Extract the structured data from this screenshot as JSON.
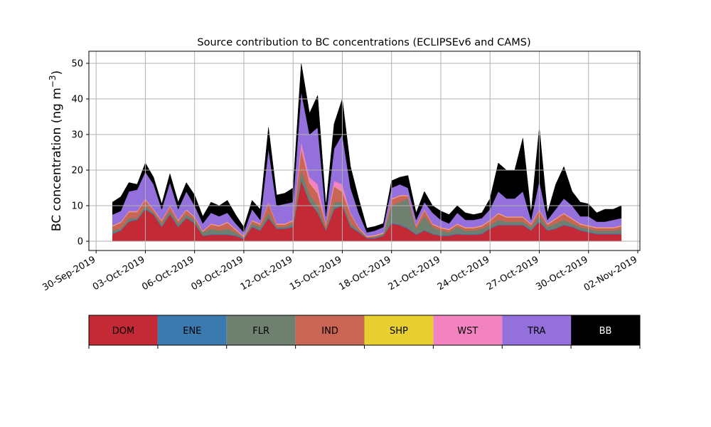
{
  "chart_data": {
    "type": "area",
    "stacked": true,
    "title": "Source contribution to BC concentrations (ECLIPSEv6 and CAMS)",
    "ylabel": "BC concentration (ng m$^{-3}$)",
    "ylabel_display": "BC concentration (ng m",
    "ylabel_sup": "−3",
    "ylabel_close": ")",
    "xlabel": "",
    "x_unit": "days since 30-Sep-2019",
    "xlim": [
      -0.44,
      33.13
    ],
    "ylim": [
      -2.6,
      53.4
    ],
    "grid": true,
    "yticks": [
      0,
      10,
      20,
      30,
      40,
      50
    ],
    "xticks": [
      0,
      3,
      6,
      9,
      12,
      15,
      18,
      21,
      24,
      27,
      30,
      33
    ],
    "xtick_labels": [
      "30-Sep-2019",
      "03-Oct-2019",
      "06-Oct-2019",
      "09-Oct-2019",
      "12-Oct-2019",
      "15-Oct-2019",
      "18-Oct-2019",
      "21-Oct-2019",
      "24-Oct-2019",
      "27-Oct-2019",
      "30-Oct-2019",
      "02-Nov-2019"
    ],
    "x": [
      1.0,
      1.5,
      2.0,
      2.5,
      3.0,
      3.5,
      4.0,
      4.5,
      5.0,
      5.5,
      6.0,
      6.5,
      7.0,
      7.5,
      8.0,
      8.5,
      9.0,
      9.5,
      10.0,
      10.5,
      11.0,
      11.5,
      12.0,
      12.5,
      13.0,
      13.5,
      14.0,
      14.5,
      15.0,
      15.5,
      16.0,
      16.5,
      17.0,
      17.5,
      18.0,
      18.5,
      19.0,
      19.5,
      20.0,
      20.5,
      21.0,
      21.5,
      22.0,
      22.5,
      23.0,
      23.5,
      24.0,
      24.5,
      25.0,
      25.5,
      26.0,
      26.5,
      27.0,
      27.5,
      28.0,
      28.5,
      29.0,
      29.5,
      30.0,
      30.5,
      31.0,
      31.5,
      32.0
    ],
    "series": [
      {
        "name": "DOM",
        "color": "#c42a35",
        "values": [
          2,
          3,
          5.5,
          6,
          9,
          7.5,
          4,
          7.5,
          4,
          6.5,
          5,
          1.5,
          1.8,
          1.8,
          1.8,
          1.5,
          0.6,
          4,
          3,
          6.5,
          3.5,
          3.5,
          4,
          17,
          11,
          8,
          3,
          9,
          10,
          4,
          2.5,
          0.8,
          0.8,
          1.5,
          5,
          4.5,
          3.5,
          1.8,
          3,
          2,
          1.5,
          1.5,
          2,
          1.8,
          1.8,
          2,
          3.5,
          4.5,
          4.5,
          4.5,
          4.5,
          3,
          5.5,
          3,
          3.5,
          4.5,
          4,
          3,
          2.5,
          2,
          2,
          2,
          2
        ]
      },
      {
        "name": "ENE",
        "color": "#3a7aaf",
        "values": [
          0.2,
          0.2,
          0.2,
          0.2,
          0.2,
          0.2,
          0.2,
          0.2,
          0.2,
          0.2,
          0.2,
          0.2,
          0.2,
          0.2,
          0.2,
          0.2,
          0.2,
          0.2,
          0.2,
          0.2,
          0.2,
          0.2,
          0.2,
          0.2,
          0.2,
          0.2,
          0.2,
          0.2,
          0.2,
          0.2,
          0.2,
          0.2,
          0.2,
          0.2,
          0.2,
          0.2,
          0.2,
          0.2,
          0.2,
          0.2,
          0.2,
          0.2,
          0.2,
          0.2,
          0.2,
          0.2,
          0.2,
          0.2,
          0.2,
          0.2,
          0.2,
          0.2,
          0.2,
          0.2,
          0.2,
          0.2,
          0.2,
          0.2,
          0.2,
          0.2,
          0.2,
          0.2,
          0.2
        ]
      },
      {
        "name": "FLR",
        "color": "#6f8070",
        "values": [
          0.8,
          0.3,
          0.8,
          0.3,
          0.8,
          0.3,
          0.8,
          0.8,
          0.8,
          0.8,
          0.8,
          0.8,
          1.5,
          1.0,
          1.5,
          0.8,
          0.2,
          0.8,
          0.8,
          1.3,
          0.3,
          0.3,
          0.8,
          2.8,
          1.8,
          1.8,
          0.3,
          1.8,
          0.8,
          0.8,
          0.3,
          0,
          0.2,
          0.3,
          4.8,
          6.3,
          8.3,
          1.5,
          3.8,
          1.8,
          1.3,
          0.8,
          1.8,
          1.0,
          1.0,
          1.3,
          0.8,
          1.3,
          0.8,
          0.8,
          0.8,
          0.8,
          1.3,
          0.8,
          1.3,
          1.3,
          0.8,
          0.8,
          0.8,
          0.8,
          0.8,
          0.8,
          1.1
        ]
      },
      {
        "name": "IND",
        "color": "#c96555",
        "values": [
          1.2,
          1.7,
          1.7,
          1.7,
          1.7,
          0.7,
          0.7,
          1.2,
          0.7,
          1.2,
          0.7,
          0.2,
          1.2,
          1.2,
          1.7,
          0.7,
          0.2,
          0.7,
          0.7,
          2.7,
          0.7,
          0.7,
          0.7,
          5.9,
          3.4,
          3.4,
          1.2,
          4.4,
          2.9,
          2.7,
          0.7,
          0.2,
          0.3,
          0.2,
          1.7,
          1.7,
          0.7,
          0.7,
          1.7,
          0.7,
          0.7,
          0.7,
          0.7,
          0.7,
          0.7,
          0.7,
          1.2,
          1.7,
          1.2,
          1.2,
          1.2,
          0.7,
          1.7,
          0.7,
          1.2,
          1.7,
          1.2,
          0.7,
          0.7,
          0.7,
          0.7,
          0.7,
          0.9
        ]
      },
      {
        "name": "SHP",
        "color": "#e6cf2e",
        "values": [
          0.1,
          0.1,
          0.1,
          0.1,
          0.1,
          0.1,
          0.1,
          0.1,
          0.1,
          0.1,
          0.1,
          0.1,
          0.1,
          0.1,
          0.1,
          0.1,
          0.1,
          0.1,
          0.1,
          0.1,
          0.1,
          0.1,
          0.1,
          0.1,
          0.1,
          0.1,
          0.1,
          0.1,
          0.1,
          0.1,
          0.1,
          0.1,
          0.1,
          0.1,
          0.1,
          0.1,
          0.1,
          0.1,
          0.1,
          0.1,
          0.1,
          0.1,
          0.1,
          0.1,
          0.1,
          0.1,
          0.1,
          0.1,
          0.1,
          0.1,
          0.1,
          0.1,
          0.1,
          0.1,
          0.1,
          0.1,
          0.1,
          0.1,
          0.1,
          0.1,
          0.1,
          0.1,
          0.1
        ]
      },
      {
        "name": "WST",
        "color": "#f283c0",
        "values": [
          0.2,
          0.2,
          0.2,
          0.2,
          0.2,
          0.2,
          0.2,
          0.2,
          0.2,
          0.2,
          0.2,
          0.2,
          0.2,
          0.2,
          0.2,
          0.2,
          0.2,
          0.2,
          0.2,
          0.2,
          0.2,
          0.2,
          0.2,
          2,
          1.5,
          2.5,
          0.2,
          1.5,
          2,
          0.2,
          0.2,
          0.2,
          0.2,
          0.2,
          0.2,
          0.2,
          0.2,
          0.2,
          0.2,
          0.2,
          0.2,
          0.2,
          0.2,
          0.2,
          0.2,
          0.2,
          0.2,
          0.2,
          0.2,
          0.2,
          0.2,
          0.2,
          0.2,
          0.2,
          0.2,
          0.2,
          0.2,
          0.2,
          0.2,
          0.2,
          0.2,
          0.2,
          0.2
        ]
      },
      {
        "name": "TRA",
        "color": "#9370db",
        "values": [
          3,
          3,
          5.5,
          6,
          7.5,
          7,
          3,
          6.5,
          3,
          5,
          3,
          2,
          3,
          2.5,
          2.5,
          1.5,
          1,
          3,
          1,
          15,
          5,
          5.5,
          5,
          14,
          12,
          16,
          2,
          9,
          14,
          7,
          4,
          1,
          1.2,
          1.5,
          3,
          3,
          2,
          1.5,
          2,
          3,
          2,
          1.5,
          3,
          2,
          2,
          2,
          3,
          6,
          5,
          5,
          7,
          1,
          8,
          1,
          2.5,
          4,
          3.5,
          2,
          2.5,
          1.5,
          1.5,
          2,
          2
        ]
      },
      {
        "name": "BB",
        "color": "#000000",
        "values": [
          3.5,
          4,
          2.5,
          1.5,
          2.5,
          2,
          1.5,
          2.5,
          2,
          2.5,
          3,
          2,
          3,
          3,
          3.5,
          2.5,
          1.5,
          2.5,
          3,
          6,
          3,
          3,
          4,
          8,
          6,
          9,
          3,
          7,
          10,
          6,
          4,
          1.2,
          1.2,
          1,
          2,
          2,
          3.5,
          2,
          3,
          2,
          2.5,
          2.5,
          2,
          2,
          1.5,
          1.5,
          3,
          8,
          8,
          8,
          15,
          2,
          15,
          2,
          7,
          9,
          4,
          4,
          3.5,
          2.5,
          3.5,
          3,
          3.5
        ]
      }
    ],
    "legend": {
      "placement": "bottom",
      "style": "colorbar",
      "labels": [
        "DOM",
        "ENE",
        "FLR",
        "IND",
        "SHP",
        "WST",
        "TRA",
        "BB"
      ]
    }
  }
}
